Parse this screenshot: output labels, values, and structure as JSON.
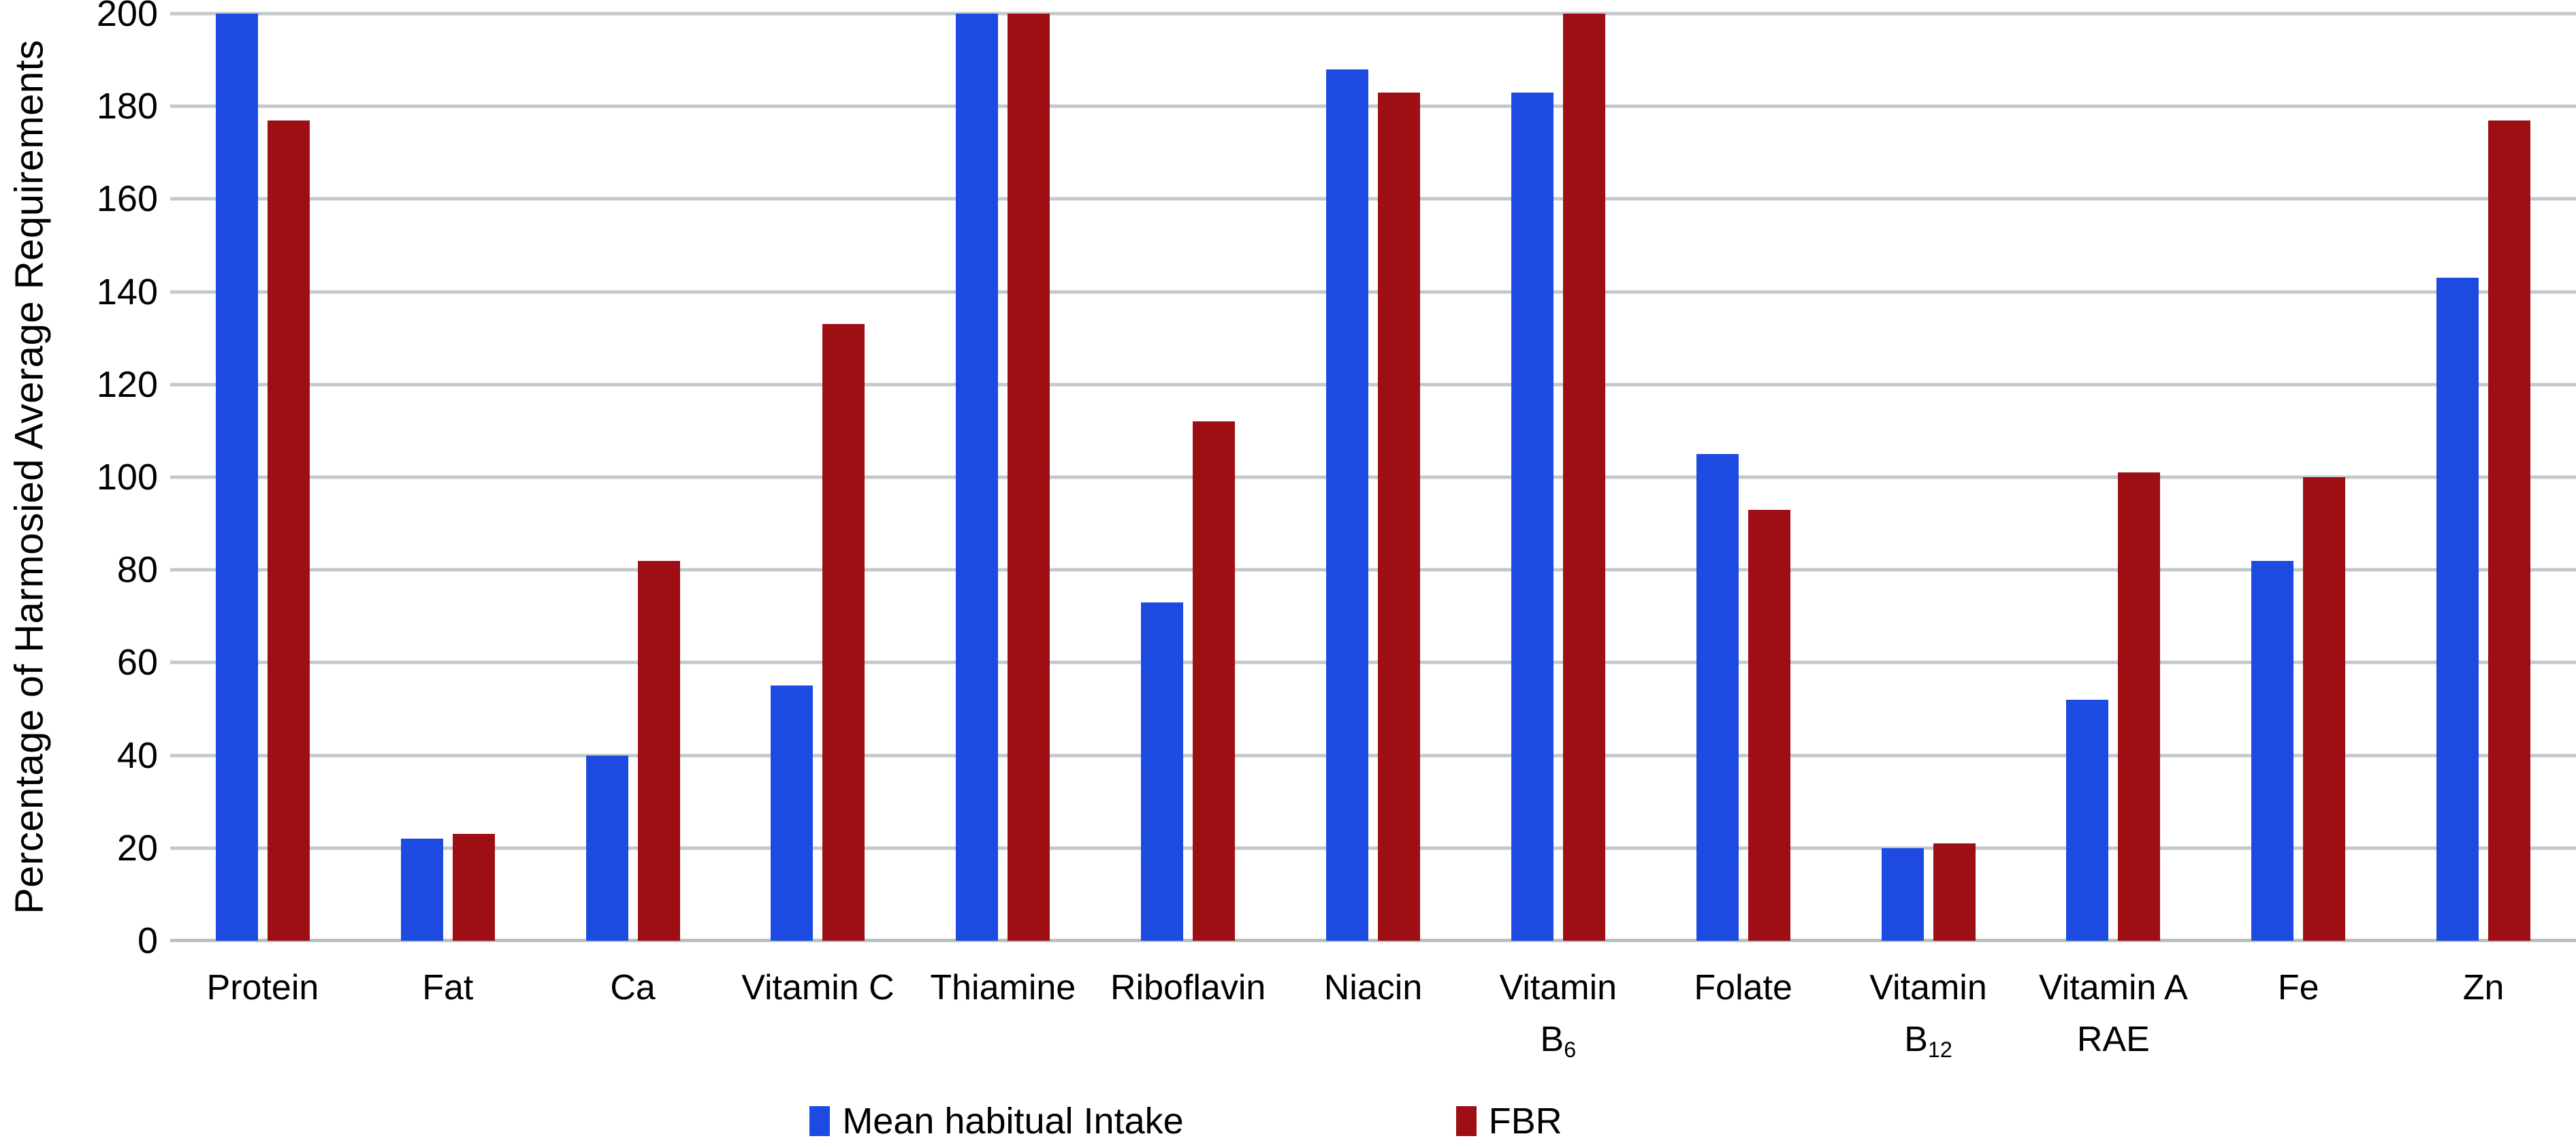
{
  "chart_data": {
    "type": "bar",
    "title": "",
    "xlabel": "",
    "ylabel": "Percentage of Harmosied Average Requirements",
    "ylim": [
      0,
      200
    ],
    "yticks": [
      0,
      20,
      40,
      60,
      80,
      100,
      120,
      140,
      160,
      180,
      200
    ],
    "grid": true,
    "gridline_color": "#c2cac9",
    "legend_position": "bottom-center",
    "background_color": "#ffffff",
    "text_color": "#000000",
    "categories": [
      {
        "line1": "Protein"
      },
      {
        "line1": "Fat"
      },
      {
        "line1": "Ca"
      },
      {
        "line1": "Vitamin C"
      },
      {
        "line1": "Thiamine"
      },
      {
        "line1": "Riboflavin"
      },
      {
        "line1": "Niacin"
      },
      {
        "line1": "Vitamin",
        "line2": "B",
        "line2_sub": "6"
      },
      {
        "line1": "Folate"
      },
      {
        "line1": "Vitamin",
        "line2": "B",
        "line2_sub": "12"
      },
      {
        "line1": "Vitamin A",
        "line2": "RAE"
      },
      {
        "line1": "Fe"
      },
      {
        "line1": "Zn"
      }
    ],
    "series": [
      {
        "name": "Mean habitual Intake",
        "color": "#1d4be2",
        "values": [
          200,
          22,
          40,
          55,
          200,
          73,
          188,
          183,
          105,
          20,
          52,
          82,
          143
        ]
      },
      {
        "name": "FBR",
        "color": "#9e0f15",
        "values": [
          177,
          23,
          82,
          133,
          200,
          112,
          183,
          200,
          93,
          21,
          101,
          100,
          177
        ]
      }
    ]
  }
}
